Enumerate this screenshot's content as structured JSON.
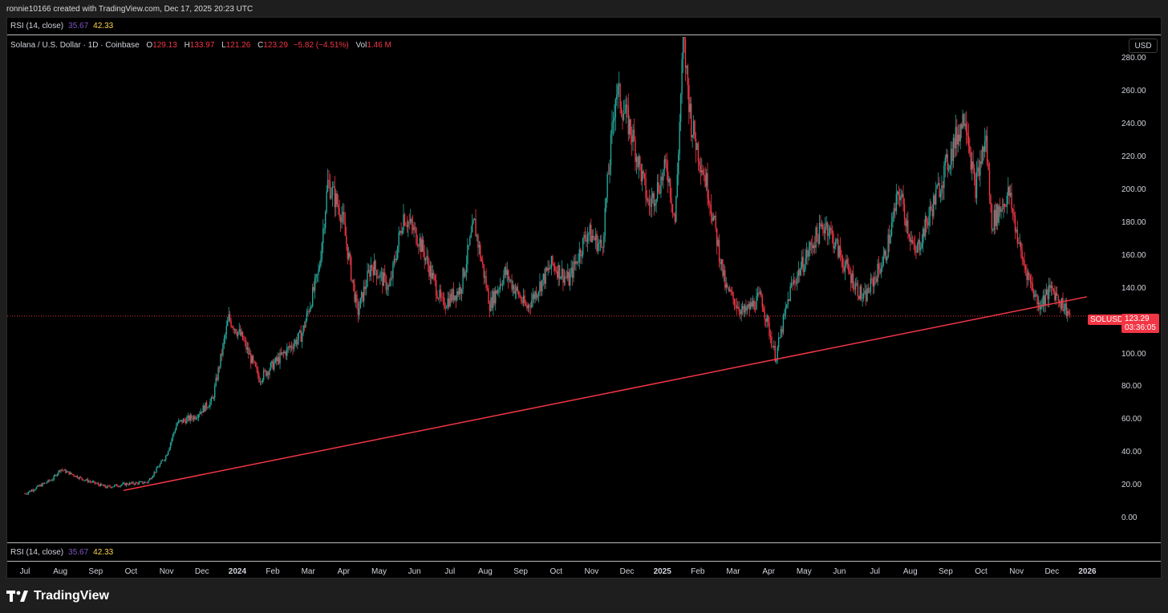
{
  "caption": "ronnie10166 created with TradingView.com, Dec 17, 2025 20:23 UTC",
  "rsi": {
    "label": "RSI (14, close)",
    "v1": "35.67",
    "v2": "42.33"
  },
  "legend": {
    "symbol": "Solana / U.S. Dollar · 1D · Coinbase",
    "o_label": "O",
    "o": "129.13",
    "h_label": "H",
    "h": "133.97",
    "l_label": "L",
    "l": "121.26",
    "c_label": "C",
    "c": "123.29",
    "change": "−5.82 (−4.51%)",
    "vol_label": "Vol",
    "vol": "1.46 M"
  },
  "currency_button": "USD",
  "price_axis": [
    "280.00",
    "260.00",
    "240.00",
    "220.00",
    "200.00",
    "180.00",
    "160.00",
    "140.00",
    "100.00",
    "80.00",
    "60.00",
    "40.00",
    "20.00",
    "0.00"
  ],
  "time_axis": [
    {
      "label": "Jul",
      "bold": false
    },
    {
      "label": "Aug",
      "bold": false
    },
    {
      "label": "Sep",
      "bold": false
    },
    {
      "label": "Oct",
      "bold": false
    },
    {
      "label": "Nov",
      "bold": false
    },
    {
      "label": "Dec",
      "bold": false
    },
    {
      "label": "2024",
      "bold": true
    },
    {
      "label": "Feb",
      "bold": false
    },
    {
      "label": "Mar",
      "bold": false
    },
    {
      "label": "Apr",
      "bold": false
    },
    {
      "label": "May",
      "bold": false
    },
    {
      "label": "Jun",
      "bold": false
    },
    {
      "label": "Jul",
      "bold": false
    },
    {
      "label": "Aug",
      "bold": false
    },
    {
      "label": "Sep",
      "bold": false
    },
    {
      "label": "Oct",
      "bold": false
    },
    {
      "label": "Nov",
      "bold": false
    },
    {
      "label": "Dec",
      "bold": false
    },
    {
      "label": "2025",
      "bold": true
    },
    {
      "label": "Feb",
      "bold": false
    },
    {
      "label": "Mar",
      "bold": false
    },
    {
      "label": "Apr",
      "bold": false
    },
    {
      "label": "May",
      "bold": false
    },
    {
      "label": "Jun",
      "bold": false
    },
    {
      "label": "Jul",
      "bold": false
    },
    {
      "label": "Aug",
      "bold": false
    },
    {
      "label": "Sep",
      "bold": false
    },
    {
      "label": "Oct",
      "bold": false
    },
    {
      "label": "Nov",
      "bold": false
    },
    {
      "label": "Dec",
      "bold": false
    },
    {
      "label": "2026",
      "bold": true
    }
  ],
  "last_price": {
    "symbol": "SOLUSD",
    "price": "123.29",
    "countdown": "03:36:05"
  },
  "colors": {
    "up": "#26a69a",
    "down": "#f23645",
    "trendline": "#f23645",
    "background": "#000000"
  },
  "trendline": {
    "start": [
      "2023-09-25",
      17
    ],
    "end": [
      "2025-12-31",
      135
    ]
  },
  "price_path": [
    [
      "2023-07-01",
      15
    ],
    [
      "2023-07-25",
      24
    ],
    [
      "2023-08-01",
      30
    ],
    [
      "2023-08-20",
      24
    ],
    [
      "2023-09-10",
      19
    ],
    [
      "2023-09-28",
      21
    ],
    [
      "2023-10-15",
      22
    ],
    [
      "2023-10-31",
      38
    ],
    [
      "2023-11-10",
      58
    ],
    [
      "2023-11-25",
      62
    ],
    [
      "2023-12-10",
      72
    ],
    [
      "2023-12-24",
      122
    ],
    [
      "2024-01-05",
      110
    ],
    [
      "2024-01-20",
      85
    ],
    [
      "2024-02-10",
      100
    ],
    [
      "2024-02-26",
      112
    ],
    [
      "2024-03-10",
      150
    ],
    [
      "2024-03-18",
      205
    ],
    [
      "2024-03-30",
      185
    ],
    [
      "2024-04-13",
      125
    ],
    [
      "2024-04-25",
      155
    ],
    [
      "2024-05-10",
      140
    ],
    [
      "2024-05-22",
      185
    ],
    [
      "2024-06-05",
      170
    ],
    [
      "2024-06-25",
      130
    ],
    [
      "2024-07-10",
      140
    ],
    [
      "2024-07-22",
      180
    ],
    [
      "2024-08-05",
      130
    ],
    [
      "2024-08-18",
      150
    ],
    [
      "2024-09-06",
      128
    ],
    [
      "2024-09-28",
      155
    ],
    [
      "2024-10-12",
      145
    ],
    [
      "2024-10-28",
      175
    ],
    [
      "2024-11-10",
      165
    ],
    [
      "2024-11-22",
      262
    ],
    [
      "2024-12-05",
      235
    ],
    [
      "2024-12-20",
      190
    ],
    [
      "2025-01-05",
      215
    ],
    [
      "2025-01-12",
      180
    ],
    [
      "2025-01-19",
      292
    ],
    [
      "2025-01-26",
      240
    ],
    [
      "2025-02-10",
      200
    ],
    [
      "2025-02-25",
      140
    ],
    [
      "2025-03-10",
      125
    ],
    [
      "2025-03-25",
      135
    ],
    [
      "2025-04-07",
      98
    ],
    [
      "2025-04-20",
      140
    ],
    [
      "2025-05-10",
      170
    ],
    [
      "2025-05-20",
      180
    ],
    [
      "2025-06-05",
      155
    ],
    [
      "2025-06-22",
      133
    ],
    [
      "2025-07-10",
      160
    ],
    [
      "2025-07-22",
      200
    ],
    [
      "2025-08-05",
      160
    ],
    [
      "2025-08-20",
      190
    ],
    [
      "2025-09-18",
      248
    ],
    [
      "2025-09-26",
      200
    ],
    [
      "2025-10-05",
      232
    ],
    [
      "2025-10-10",
      180
    ],
    [
      "2025-10-25",
      198
    ],
    [
      "2025-11-05",
      160
    ],
    [
      "2025-11-20",
      130
    ],
    [
      "2025-12-01",
      140
    ],
    [
      "2025-12-17",
      123.29
    ]
  ]
}
